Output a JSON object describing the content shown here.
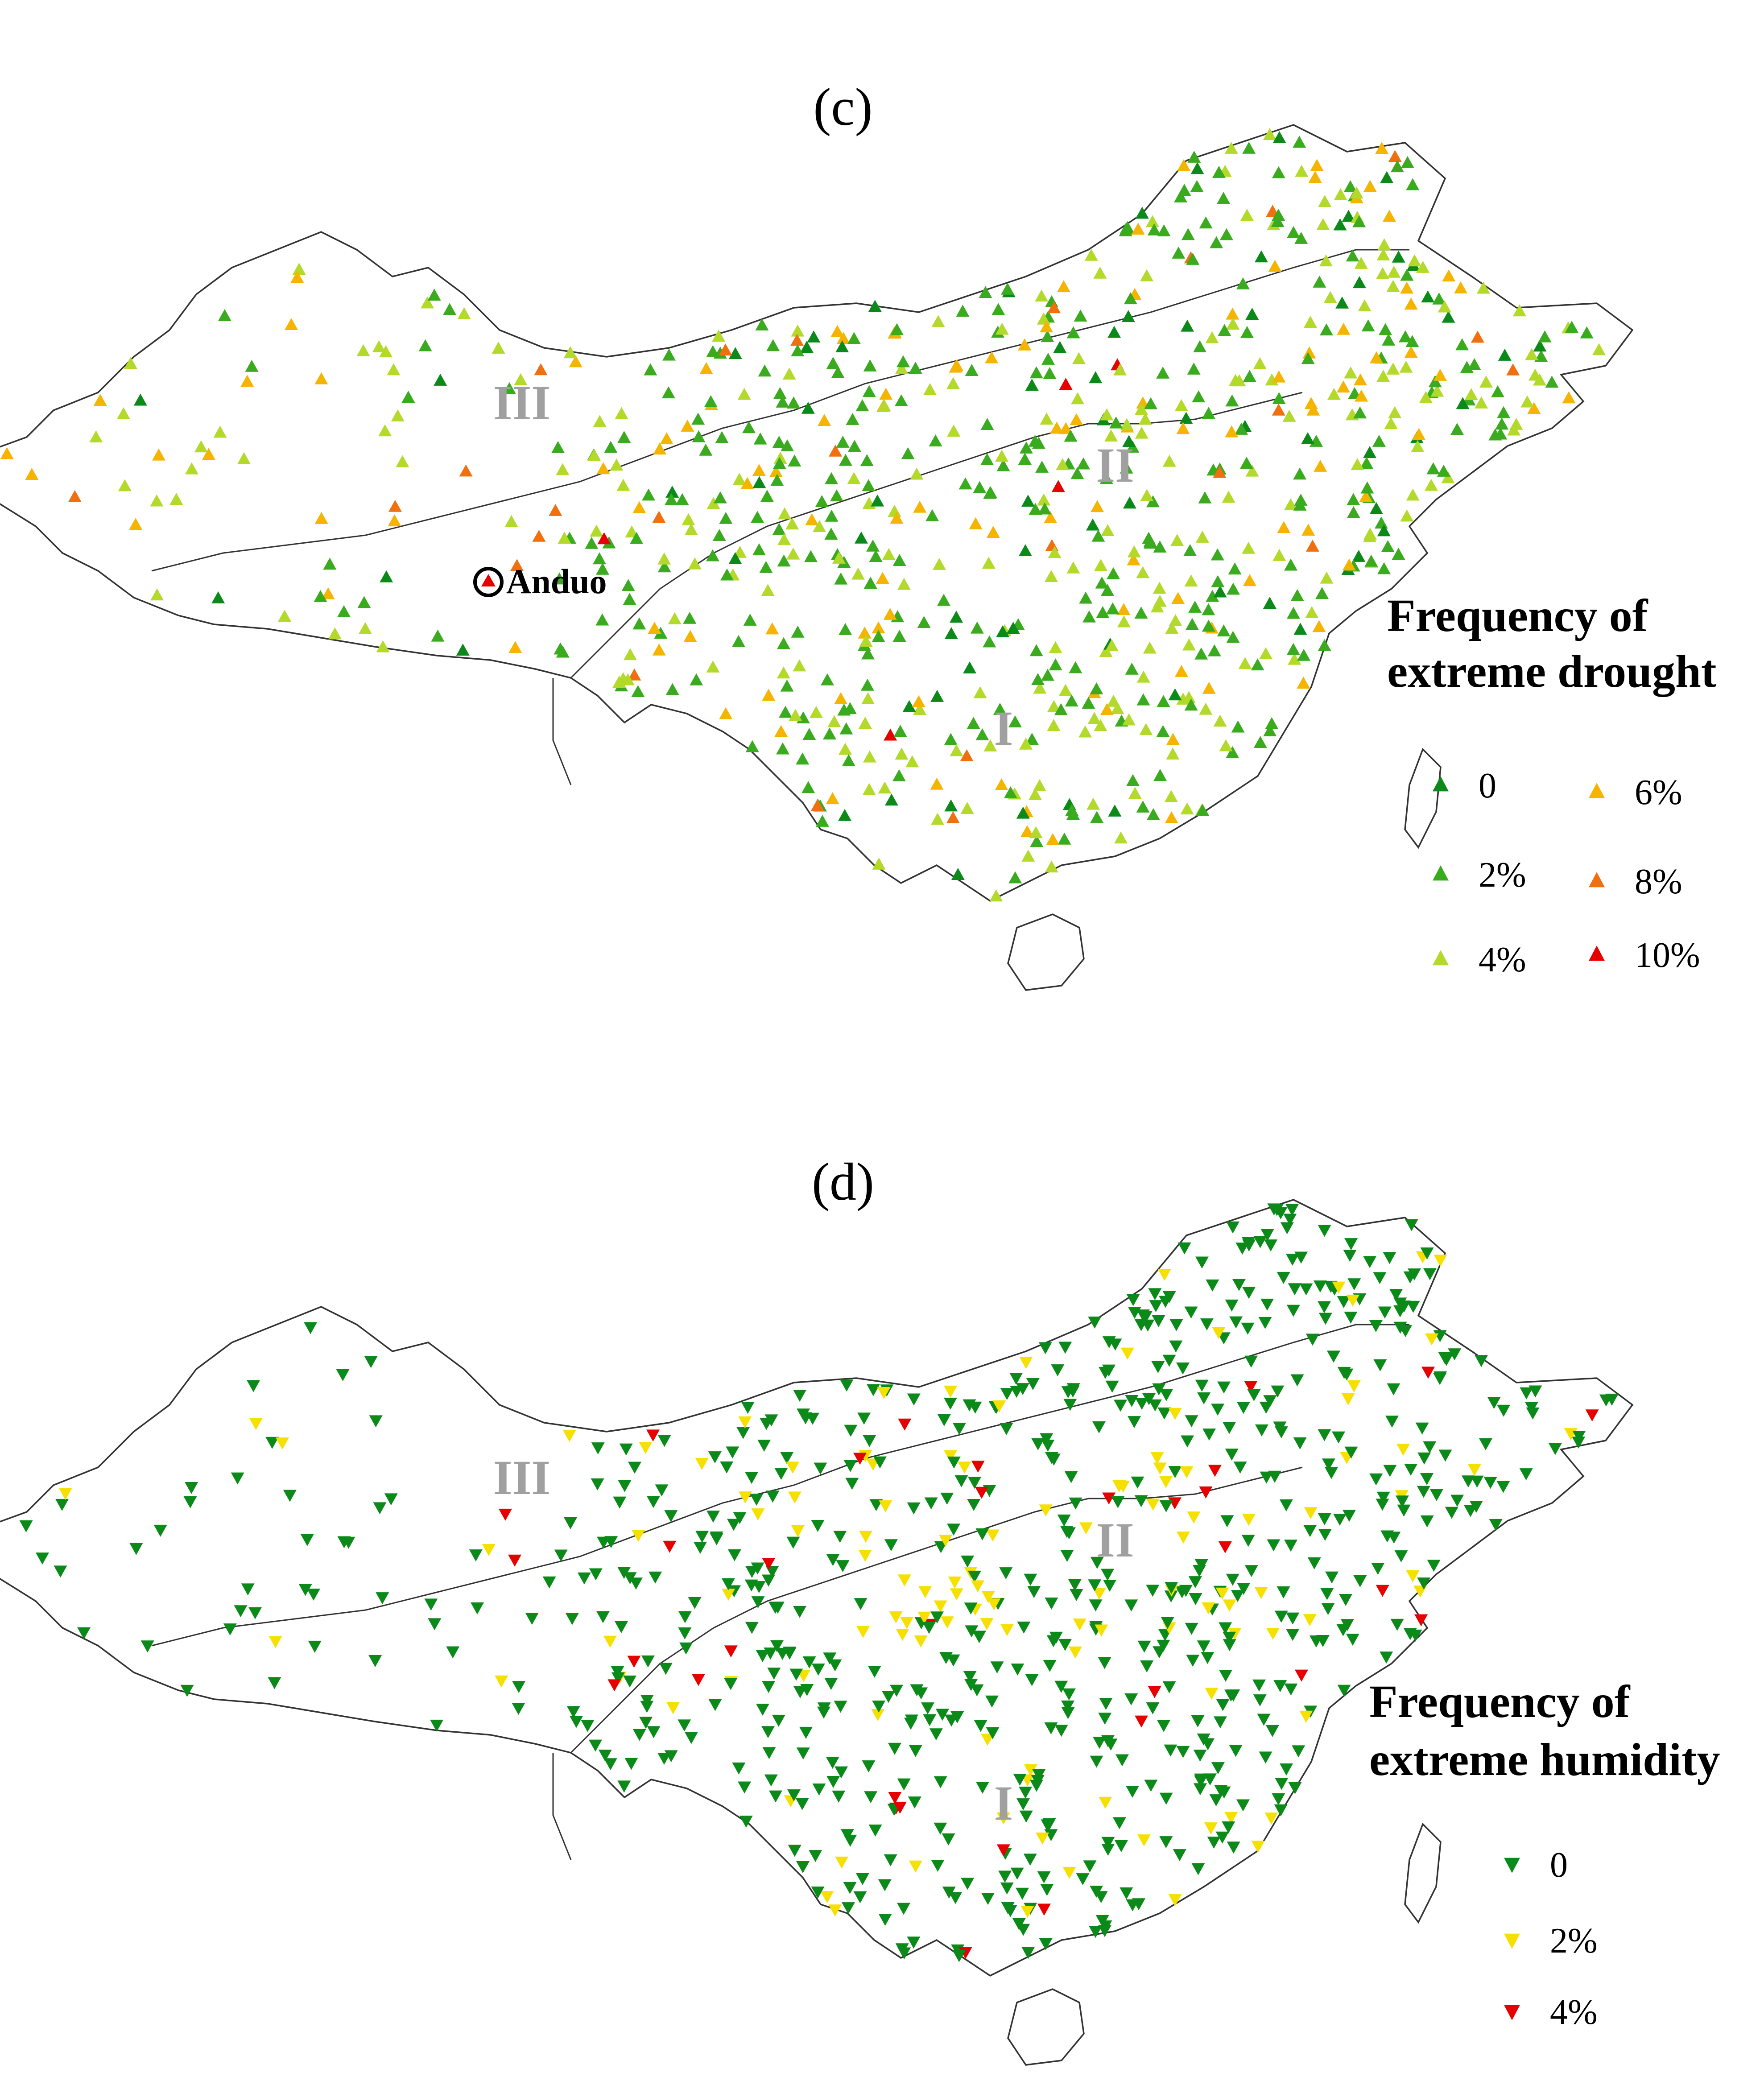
{
  "panels": [
    {
      "label": "(c)",
      "legend": {
        "title_line1": "Frequency of",
        "title_line2": "extreme drought",
        "items": [
          {
            "label": "0",
            "color": "#0b8a1a"
          },
          {
            "label": "6%",
            "color": "#f5b400"
          },
          {
            "label": "2%",
            "color": "#3aab1f"
          },
          {
            "label": "8%",
            "color": "#f07010"
          },
          {
            "label": "4%",
            "color": "#b3d92a"
          },
          {
            "label": "10%",
            "color": "#e60000"
          }
        ]
      },
      "regions": [
        "III",
        "II",
        "I"
      ],
      "station": {
        "name": "Anduo",
        "color": "#e60000"
      }
    },
    {
      "label": "(d)",
      "legend": {
        "title_line1": "Frequency of",
        "title_line2": "extreme humidity",
        "items": [
          {
            "label": "0",
            "color": "#0b8a1a"
          },
          {
            "label": "2%",
            "color": "#f5e000"
          },
          {
            "label": "4%",
            "color": "#e60000"
          }
        ]
      },
      "regions": [
        "III",
        "II",
        "I"
      ]
    }
  ]
}
